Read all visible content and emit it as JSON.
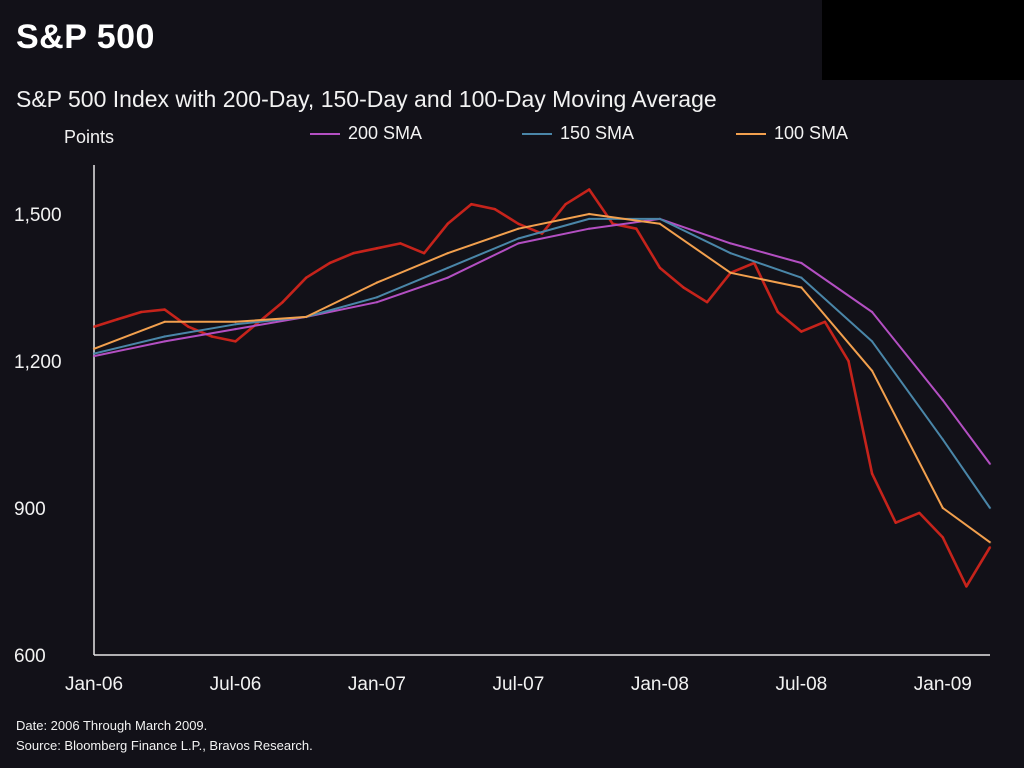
{
  "title": "S&P 500",
  "subtitle": "S&P 500 Index with 200-Day, 150-Day and 100-Day Moving Average",
  "footer": {
    "date_note": "Date: 2006 Through March 2009.",
    "source_note": "Source: Bloomberg Finance L.P., Bravos Research."
  },
  "colors": {
    "background": "#121118",
    "price": "#d9261c",
    "sma200": "#b34fc2",
    "sma150": "#4a86a8",
    "sma100": "#f2a04e"
  },
  "chart_data": {
    "type": "line",
    "title": "S&P 500",
    "subtitle": "S&P 500 Index with 200-Day, 150-Day and 100-Day Moving Average",
    "ylabel": "Points",
    "xlabel": "",
    "x_ticks": [
      "Jan-06",
      "Jul-06",
      "Jan-07",
      "Jul-07",
      "Jan-08",
      "Jul-08",
      "Jan-09"
    ],
    "y_ticks": [
      600,
      900,
      1200,
      1500
    ],
    "y_tick_labels": [
      "600",
      "900",
      "1,200",
      "1,500"
    ],
    "ylim": [
      600,
      1600
    ],
    "x_range": [
      "2006-01",
      "2009-03"
    ],
    "grid": false,
    "legend_position": "top",
    "series": [
      {
        "name": "S&P 500",
        "color": "#d9261c",
        "x": [
          "2006-01",
          "2006-02",
          "2006-03",
          "2006-04",
          "2006-05",
          "2006-06",
          "2006-07",
          "2006-08",
          "2006-09",
          "2006-10",
          "2006-11",
          "2006-12",
          "2007-01",
          "2007-02",
          "2007-03",
          "2007-04",
          "2007-05",
          "2007-06",
          "2007-07",
          "2007-08",
          "2007-09",
          "2007-10",
          "2007-11",
          "2007-12",
          "2008-01",
          "2008-02",
          "2008-03",
          "2008-04",
          "2008-05",
          "2008-06",
          "2008-07",
          "2008-08",
          "2008-09",
          "2008-10",
          "2008-11",
          "2008-12",
          "2009-01",
          "2009-02",
          "2009-03"
        ],
        "values": [
          1270,
          1285,
          1300,
          1305,
          1270,
          1250,
          1240,
          1280,
          1320,
          1370,
          1400,
          1420,
          1430,
          1440,
          1420,
          1480,
          1520,
          1510,
          1480,
          1460,
          1520,
          1550,
          1480,
          1470,
          1390,
          1350,
          1320,
          1380,
          1400,
          1300,
          1260,
          1280,
          1200,
          970,
          870,
          890,
          840,
          740,
          820
        ]
      },
      {
        "name": "200 SMA",
        "color": "#b34fc2",
        "x": [
          "2006-01",
          "2006-04",
          "2006-07",
          "2006-10",
          "2007-01",
          "2007-04",
          "2007-07",
          "2007-10",
          "2008-01",
          "2008-04",
          "2008-07",
          "2008-10",
          "2009-01",
          "2009-03"
        ],
        "values": [
          1210,
          1240,
          1265,
          1290,
          1320,
          1370,
          1440,
          1470,
          1490,
          1440,
          1400,
          1300,
          1120,
          990
        ]
      },
      {
        "name": "150 SMA",
        "color": "#4a86a8",
        "x": [
          "2006-01",
          "2006-04",
          "2006-07",
          "2006-10",
          "2007-01",
          "2007-04",
          "2007-07",
          "2007-10",
          "2008-01",
          "2008-04",
          "2008-07",
          "2008-10",
          "2009-01",
          "2009-03"
        ],
        "values": [
          1215,
          1250,
          1275,
          1290,
          1330,
          1390,
          1450,
          1490,
          1490,
          1420,
          1370,
          1240,
          1040,
          900
        ]
      },
      {
        "name": "100 SMA",
        "color": "#f2a04e",
        "x": [
          "2006-01",
          "2006-04",
          "2006-07",
          "2006-10",
          "2007-01",
          "2007-04",
          "2007-07",
          "2007-10",
          "2008-01",
          "2008-04",
          "2008-07",
          "2008-10",
          "2009-01",
          "2009-03"
        ],
        "values": [
          1225,
          1280,
          1280,
          1290,
          1360,
          1420,
          1470,
          1500,
          1480,
          1380,
          1350,
          1180,
          900,
          830
        ]
      }
    ]
  }
}
